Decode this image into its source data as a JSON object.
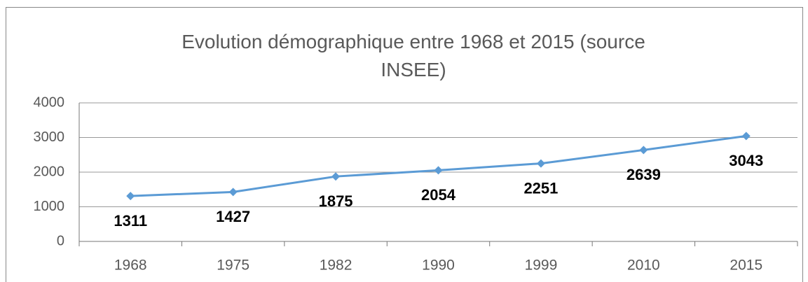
{
  "chart_data": {
    "type": "line",
    "title": "Evolution démographique entre 1968 et 2015 (source INSEE)",
    "categories": [
      "1968",
      "1975",
      "1982",
      "1990",
      "1999",
      "2010",
      "2015"
    ],
    "values": [
      1311,
      1427,
      1875,
      2054,
      2251,
      2639,
      3043
    ],
    "color": "#5b9bd5",
    "ylim": [
      0,
      4000
    ],
    "yticks": [
      0,
      1000,
      2000,
      3000,
      4000
    ],
    "grid": true
  }
}
